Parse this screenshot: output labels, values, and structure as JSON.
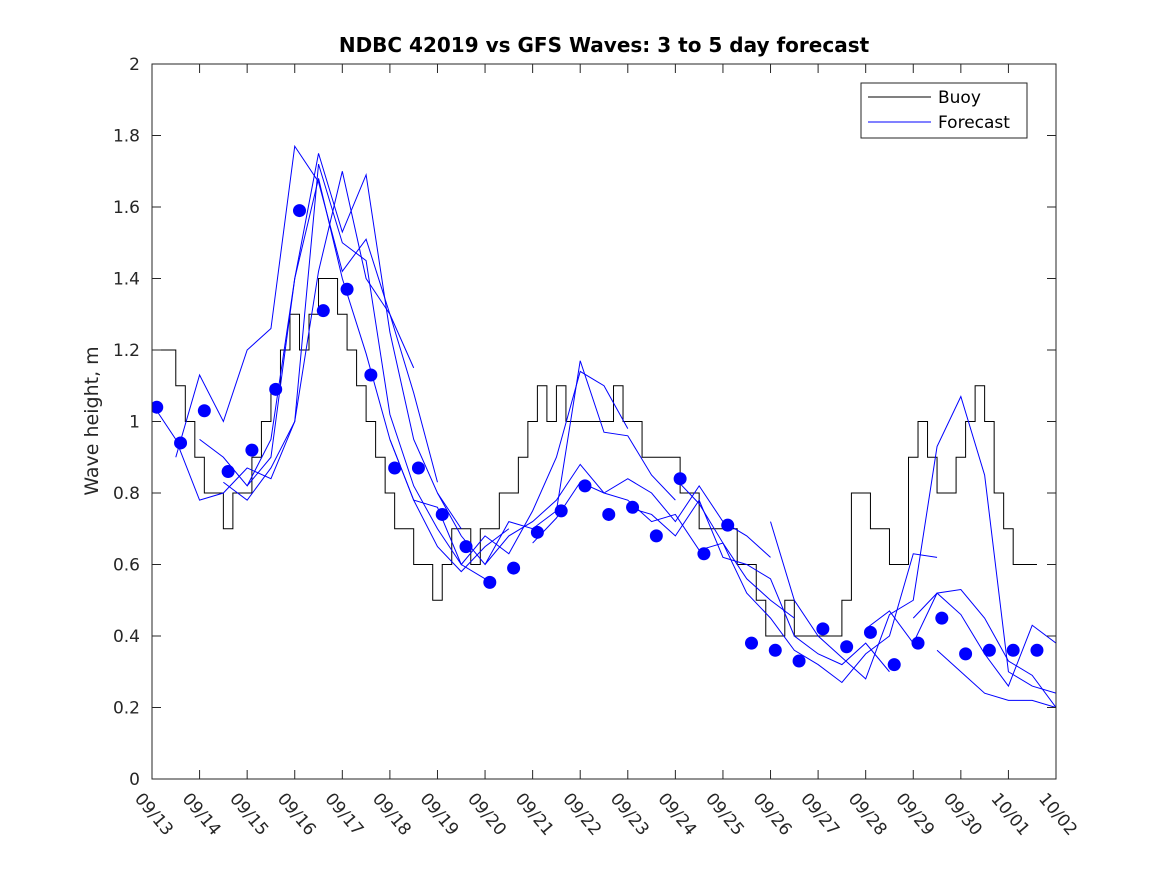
{
  "chart_data": {
    "type": "line",
    "title": "NDBC 42019 vs GFS Waves: 3 to 5 day forecast",
    "xlabel": "",
    "ylabel": "Wave height, m",
    "ylim": [
      0,
      2
    ],
    "yticks": [
      0,
      0.2,
      0.4,
      0.6,
      0.8,
      1,
      1.2,
      1.4,
      1.6,
      1.8,
      2
    ],
    "ytick_labels": [
      "0",
      "0.2",
      "0.4",
      "0.6",
      "0.8",
      "1",
      "1.2",
      "1.4",
      "1.6",
      "1.8",
      "2"
    ],
    "xlim_days": [
      0,
      19
    ],
    "xtick_labels": [
      "09/13",
      "09/14",
      "09/15",
      "09/16",
      "09/17",
      "09/18",
      "09/19",
      "09/20",
      "09/21",
      "09/22",
      "09/23",
      "09/24",
      "09/25",
      "09/26",
      "09/27",
      "09/28",
      "09/29",
      "09/30",
      "10/01",
      "10/02"
    ],
    "x_units": "days since 09/13 00:00",
    "grid": false,
    "legend": {
      "position": "top-right",
      "entries": [
        {
          "label": "Buoy",
          "color": "#000000"
        },
        {
          "label": "Forecast",
          "color": "#0000ff"
        }
      ]
    },
    "series": [
      {
        "name": "Buoy",
        "color": "#000000",
        "style": "step",
        "x": [
          0,
          0.3,
          0.5,
          0.7,
          0.9,
          1.1,
          1.3,
          1.5,
          1.7,
          1.9,
          2.1,
          2.3,
          2.5,
          2.7,
          2.9,
          3.1,
          3.3,
          3.5,
          3.7,
          3.9,
          4.1,
          4.3,
          4.5,
          4.7,
          4.9,
          5.1,
          5.3,
          5.5,
          5.7,
          5.9,
          6.1,
          6.3,
          6.5,
          6.7,
          6.9,
          7.1,
          7.3,
          7.5,
          7.7,
          7.9,
          8.1,
          8.3,
          8.5,
          8.7,
          8.9,
          9.1,
          9.3,
          9.5,
          9.7,
          9.9,
          10.1,
          10.3,
          10.5,
          10.7,
          10.9,
          11.1,
          11.3,
          11.5,
          11.7,
          11.9,
          12.1,
          12.3,
          12.5,
          12.7,
          12.9,
          13.1,
          13.3,
          13.5,
          13.7,
          13.9,
          14.1,
          14.3,
          14.5,
          14.7,
          14.9,
          15.1,
          15.3,
          15.5,
          15.7,
          15.9,
          16.1,
          16.3,
          16.5,
          16.7,
          16.9,
          17.1,
          17.3,
          17.5,
          17.7,
          17.9,
          18.1,
          18.3
        ],
        "values": [
          1.2,
          1.2,
          1.1,
          1.0,
          0.9,
          0.8,
          0.8,
          0.7,
          0.8,
          0.8,
          0.9,
          1.0,
          1.1,
          1.2,
          1.3,
          1.2,
          1.3,
          1.4,
          1.4,
          1.3,
          1.2,
          1.1,
          1.0,
          0.9,
          0.8,
          0.7,
          0.7,
          0.6,
          0.6,
          0.5,
          0.6,
          0.7,
          0.7,
          0.6,
          0.7,
          0.7,
          0.8,
          0.8,
          0.9,
          1.0,
          1.1,
          1.0,
          1.1,
          1.0,
          1.0,
          1.0,
          1.0,
          1.0,
          1.1,
          1.0,
          1.0,
          0.9,
          0.9,
          0.9,
          0.9,
          0.8,
          0.8,
          0.7,
          0.7,
          0.7,
          0.7,
          0.6,
          0.6,
          0.5,
          0.4,
          0.4,
          0.5,
          0.4,
          0.4,
          0.4,
          0.4,
          0.4,
          0.5,
          0.8,
          0.8,
          0.7,
          0.7,
          0.6,
          0.6,
          0.9,
          1.0,
          0.9,
          0.8,
          0.8,
          0.9,
          1.0,
          1.1,
          1.0,
          0.8,
          0.7,
          0.6,
          0.6
        ]
      },
      {
        "name": "Forecast",
        "color": "#0000ff",
        "markers": {
          "x": [
            0.1,
            0.6,
            1.1,
            1.6,
            2.1,
            2.6,
            3.1,
            3.6,
            4.1,
            4.6,
            5.1,
            5.6,
            6.1,
            6.6,
            7.1,
            7.6,
            8.1,
            8.6,
            9.1,
            9.6,
            10.1,
            10.6,
            11.1,
            11.6,
            12.1,
            12.6,
            13.1,
            13.6,
            14.1,
            14.6,
            15.1,
            15.6,
            16.1,
            16.6,
            17.1,
            17.6,
            18.1,
            18.6
          ],
          "values": [
            1.04,
            0.94,
            1.03,
            0.86,
            0.92,
            1.09,
            1.59,
            1.31,
            1.37,
            1.13,
            0.87,
            0.87,
            0.74,
            0.65,
            0.55,
            0.59,
            0.69,
            0.75,
            0.82,
            0.74,
            0.76,
            0.68,
            0.84,
            0.63,
            0.71,
            0.38,
            0.36,
            0.33,
            0.42,
            0.37,
            0.41,
            0.32,
            0.38,
            0.45,
            0.35,
            0.36,
            0.36,
            0.36
          ]
        },
        "lines": [
          {
            "x": [
              0,
              0.5,
              1.0,
              1.5,
              2.0,
              2.5,
              3.0,
              3.5,
              4.0,
              4.5,
              5.0,
              5.5
            ],
            "values": [
              1.05,
              0.95,
              0.78,
              0.8,
              0.87,
              0.84,
              1.0,
              1.42,
              1.7,
              1.4,
              1.3,
              1.15
            ]
          },
          {
            "x": [
              0.5,
              1.0,
              1.5,
              2.0,
              2.5,
              3.0,
              3.5,
              4.0,
              4.5,
              5.0,
              5.5,
              6.0
            ],
            "values": [
              0.9,
              1.13,
              1.0,
              1.2,
              1.26,
              1.77,
              1.67,
              1.42,
              1.51,
              1.3,
              1.08,
              0.83
            ]
          },
          {
            "x": [
              1.0,
              1.5,
              2.0,
              2.5,
              3.0,
              3.5,
              4.0,
              4.5,
              5.0,
              5.5,
              6.0,
              6.5
            ],
            "values": [
              0.95,
              0.9,
              0.82,
              0.95,
              1.4,
              1.75,
              1.53,
              1.69,
              1.25,
              0.95,
              0.8,
              0.7
            ]
          },
          {
            "x": [
              1.5,
              2.0,
              2.5,
              3.0,
              3.5,
              4.0,
              4.5,
              5.0,
              5.5,
              6.0,
              6.5,
              7.0
            ],
            "values": [
              0.83,
              0.78,
              0.87,
              1.0,
              1.72,
              1.5,
              1.45,
              1.02,
              0.82,
              0.7,
              0.6,
              0.56
            ]
          },
          {
            "x": [
              2.0,
              2.5,
              3.0,
              3.5,
              4.0,
              4.5,
              5.0,
              5.5,
              6.0,
              6.5,
              7.0,
              7.5
            ],
            "values": [
              0.82,
              0.9,
              1.4,
              1.68,
              1.4,
              1.19,
              0.95,
              0.78,
              0.65,
              0.58,
              0.65,
              0.7
            ]
          },
          {
            "x": [
              5.0,
              5.5,
              6.0,
              6.5,
              7.0,
              7.5,
              8.0,
              8.5,
              9.0,
              9.5,
              10.0
            ],
            "values": [
              0.95,
              0.78,
              0.76,
              0.6,
              0.68,
              0.63,
              0.75,
              0.9,
              1.14,
              1.1,
              0.98
            ]
          },
          {
            "x": [
              6.0,
              6.5,
              7.0,
              7.5,
              8.0,
              8.5,
              9.0,
              9.5,
              10.0,
              10.5,
              11.0
            ],
            "values": [
              0.8,
              0.68,
              0.6,
              0.72,
              0.7,
              0.75,
              1.17,
              0.97,
              0.96,
              0.85,
              0.78
            ]
          },
          {
            "x": [
              7.0,
              7.5,
              8.0,
              8.5,
              9.0,
              9.5,
              10.0,
              10.5,
              11.0,
              11.5,
              12.0,
              12.5,
              13.0
            ],
            "values": [
              0.6,
              0.68,
              0.72,
              0.78,
              0.88,
              0.8,
              0.84,
              0.8,
              0.72,
              0.82,
              0.72,
              0.68,
              0.62
            ]
          },
          {
            "x": [
              8.0,
              8.5,
              9.0,
              9.5,
              10.0,
              10.5,
              11.0,
              11.5,
              12.0,
              12.5,
              13.0,
              13.5
            ],
            "values": [
              0.66,
              0.73,
              0.83,
              0.8,
              0.78,
              0.72,
              0.74,
              0.64,
              0.66,
              0.56,
              0.5,
              0.45
            ]
          },
          {
            "x": [
              10.0,
              10.5,
              11.0,
              11.5,
              12.0,
              12.5,
              13.0,
              13.5,
              14.0,
              14.5,
              15.0,
              15.5
            ],
            "values": [
              0.76,
              0.74,
              0.68,
              0.78,
              0.62,
              0.6,
              0.56,
              0.4,
              0.35,
              0.32,
              0.38,
              0.3
            ]
          },
          {
            "x": [
              11.0,
              11.5,
              12.0,
              12.5,
              13.0,
              13.5,
              14.0,
              14.5,
              15.0,
              15.5,
              16.0,
              16.5
            ],
            "values": [
              0.84,
              0.77,
              0.66,
              0.52,
              0.45,
              0.36,
              0.32,
              0.27,
              0.35,
              0.4,
              0.63,
              0.62
            ]
          },
          {
            "x": [
              13.0,
              13.5,
              14.0,
              14.5,
              15.0,
              15.5,
              16.0,
              16.5,
              17.0,
              17.5,
              18.0,
              18.5,
              19.0
            ],
            "values": [
              0.72,
              0.5,
              0.4,
              0.34,
              0.28,
              0.46,
              0.5,
              0.93,
              1.07,
              0.85,
              0.3,
              0.26,
              0.24
            ]
          },
          {
            "x": [
              15.0,
              15.5,
              16.0,
              16.5,
              17.0,
              17.5,
              18.0,
              18.5,
              19.0
            ],
            "values": [
              0.42,
              0.47,
              0.38,
              0.52,
              0.53,
              0.45,
              0.33,
              0.29,
              0.2
            ]
          },
          {
            "x": [
              16.0,
              16.5,
              17.0,
              17.5,
              18.0,
              18.5,
              19.0
            ],
            "values": [
              0.45,
              0.52,
              0.46,
              0.35,
              0.26,
              0.43,
              0.38
            ]
          },
          {
            "x": [
              16.5,
              17.0,
              17.5,
              18.0,
              18.5,
              19.0
            ],
            "values": [
              0.36,
              0.3,
              0.24,
              0.22,
              0.22,
              0.2
            ]
          }
        ]
      }
    ]
  }
}
